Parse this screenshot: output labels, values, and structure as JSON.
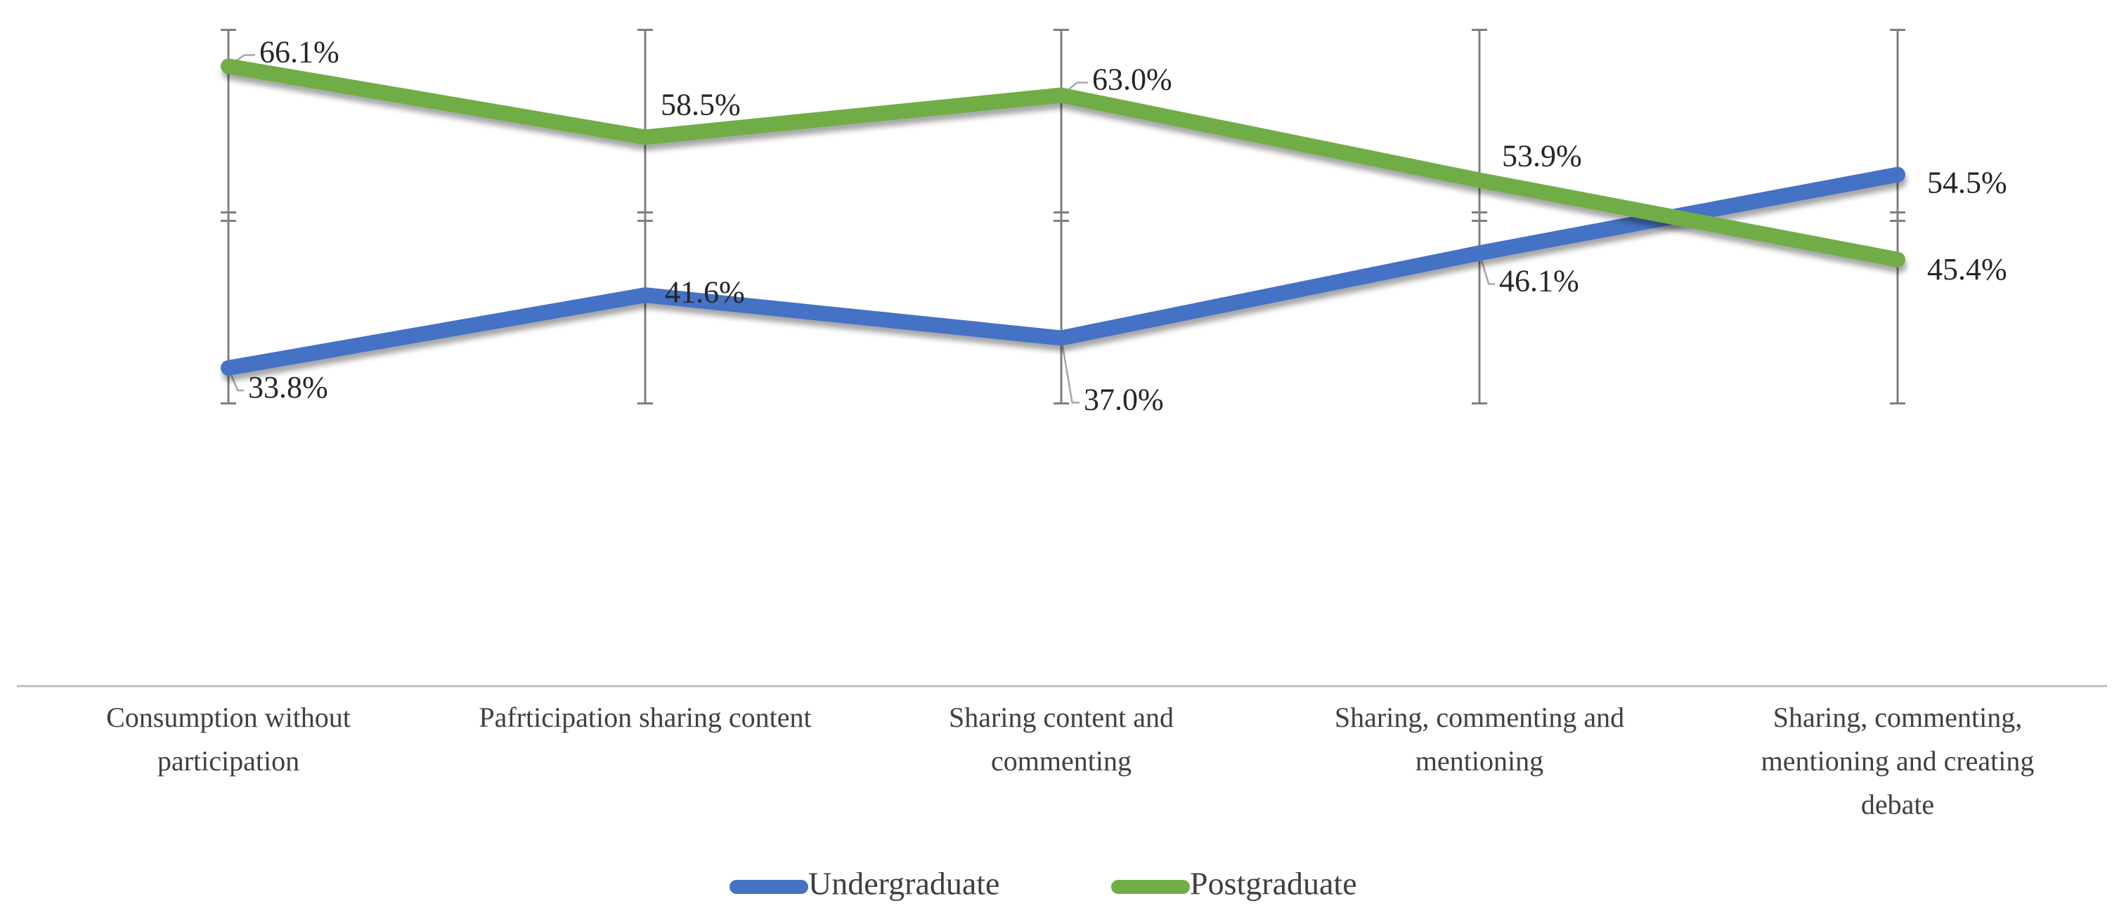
{
  "chart_data": {
    "type": "line",
    "title": "",
    "xlabel": "",
    "ylabel": "",
    "ylim": [
      0,
      100
    ],
    "grid": false,
    "legend_position": "bottom",
    "categories": [
      [
        "Consumption without",
        "participation"
      ],
      [
        "Pafrticipation sharing content"
      ],
      [
        "Sharing content and",
        "commenting"
      ],
      [
        "Sharing, commenting and",
        "mentioning"
      ],
      [
        "Sharing, commenting,",
        "mentioning and creating",
        "debate"
      ]
    ],
    "series": [
      {
        "name": "Undergraduate",
        "color": "#4472C4",
        "values": [
          33.8,
          41.6,
          37.0,
          46.1,
          54.5
        ],
        "labels": [
          "33.8%",
          "41.6%",
          "37.0%",
          "46.1%",
          "54.5%"
        ]
      },
      {
        "name": "Postgraduate",
        "color": "#70AD47",
        "values": [
          66.1,
          58.5,
          63.0,
          53.9,
          45.4
        ],
        "labels": [
          "66.1%",
          "58.5%",
          "63.0%",
          "53.9%",
          "45.4%"
        ]
      }
    ],
    "error_bars": {
      "color": "#7F7F7F",
      "high": [
        70,
        70,
        70,
        70,
        70
      ],
      "mid": [
        50,
        50,
        50,
        50,
        50
      ],
      "low": [
        30,
        30,
        30,
        30,
        30
      ]
    }
  }
}
